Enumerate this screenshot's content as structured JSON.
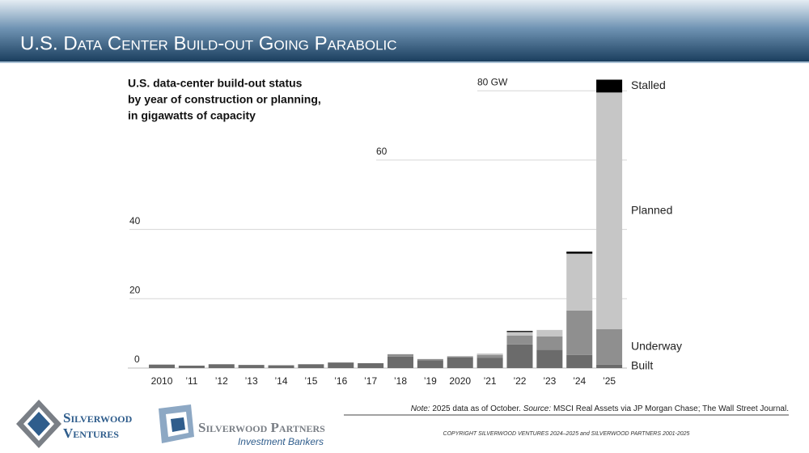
{
  "header": {
    "title": "U.S. Data Center Build-out Going Parabolic"
  },
  "chart_data": {
    "type": "stacked-bar",
    "title": [
      "U.S. data-center build-out status",
      "by year of construction or planning,",
      "in gigawatts of capacity"
    ],
    "categories": [
      "2010",
      "’11",
      "’12",
      "’13",
      "’14",
      "’15",
      "’16",
      "’17",
      "’18",
      "’19",
      "2020",
      "’21",
      "’22",
      "’23",
      "’24",
      "’25"
    ],
    "series": [
      {
        "name": "Built",
        "color": "#6b6b6b",
        "values": [
          1.0,
          0.7,
          1.1,
          0.9,
          0.8,
          1.1,
          1.6,
          1.4,
          3.3,
          2.2,
          3.1,
          3.0,
          6.8,
          5.3,
          3.8,
          1.0
        ]
      },
      {
        "name": "Underway",
        "color": "#8f8f8f",
        "values": [
          0,
          0,
          0,
          0,
          0,
          0,
          0,
          0,
          0.7,
          0.4,
          0.3,
          0.8,
          2.6,
          3.8,
          12.8,
          10.2
        ]
      },
      {
        "name": "Planned",
        "color": "#c6c6c6",
        "values": [
          0,
          0,
          0,
          0,
          0,
          0,
          0,
          0,
          0,
          0,
          0,
          0.4,
          1.0,
          1.9,
          16.4,
          68.3
        ]
      },
      {
        "name": "Stalled",
        "color": "#000000",
        "values": [
          0,
          0,
          0,
          0,
          0,
          0,
          0,
          0,
          0,
          0,
          0,
          0,
          0.3,
          0,
          0.6,
          3.7
        ]
      }
    ],
    "ylim": [
      0,
      80
    ],
    "yticks": [
      0,
      20,
      40,
      60,
      {
        "value": 80,
        "label": "80 GW"
      }
    ],
    "grid": true
  },
  "footer": {
    "note_label": "Note:",
    "note": "2025 data as of October.",
    "source_label": "Source:",
    "source": "MSCI Real Assets via JP Morgan Chase; The Wall Street Journal.",
    "copyright": "COPYRIGHT SILVERWOOD VENTURES 2024–2025 and SILVERWOOD PARTNERS 2001-2025"
  },
  "logos": {
    "ventures": [
      "Silverwood",
      "Ventures"
    ],
    "partners": [
      "Silverwood Partners",
      "Investment Bankers"
    ]
  }
}
